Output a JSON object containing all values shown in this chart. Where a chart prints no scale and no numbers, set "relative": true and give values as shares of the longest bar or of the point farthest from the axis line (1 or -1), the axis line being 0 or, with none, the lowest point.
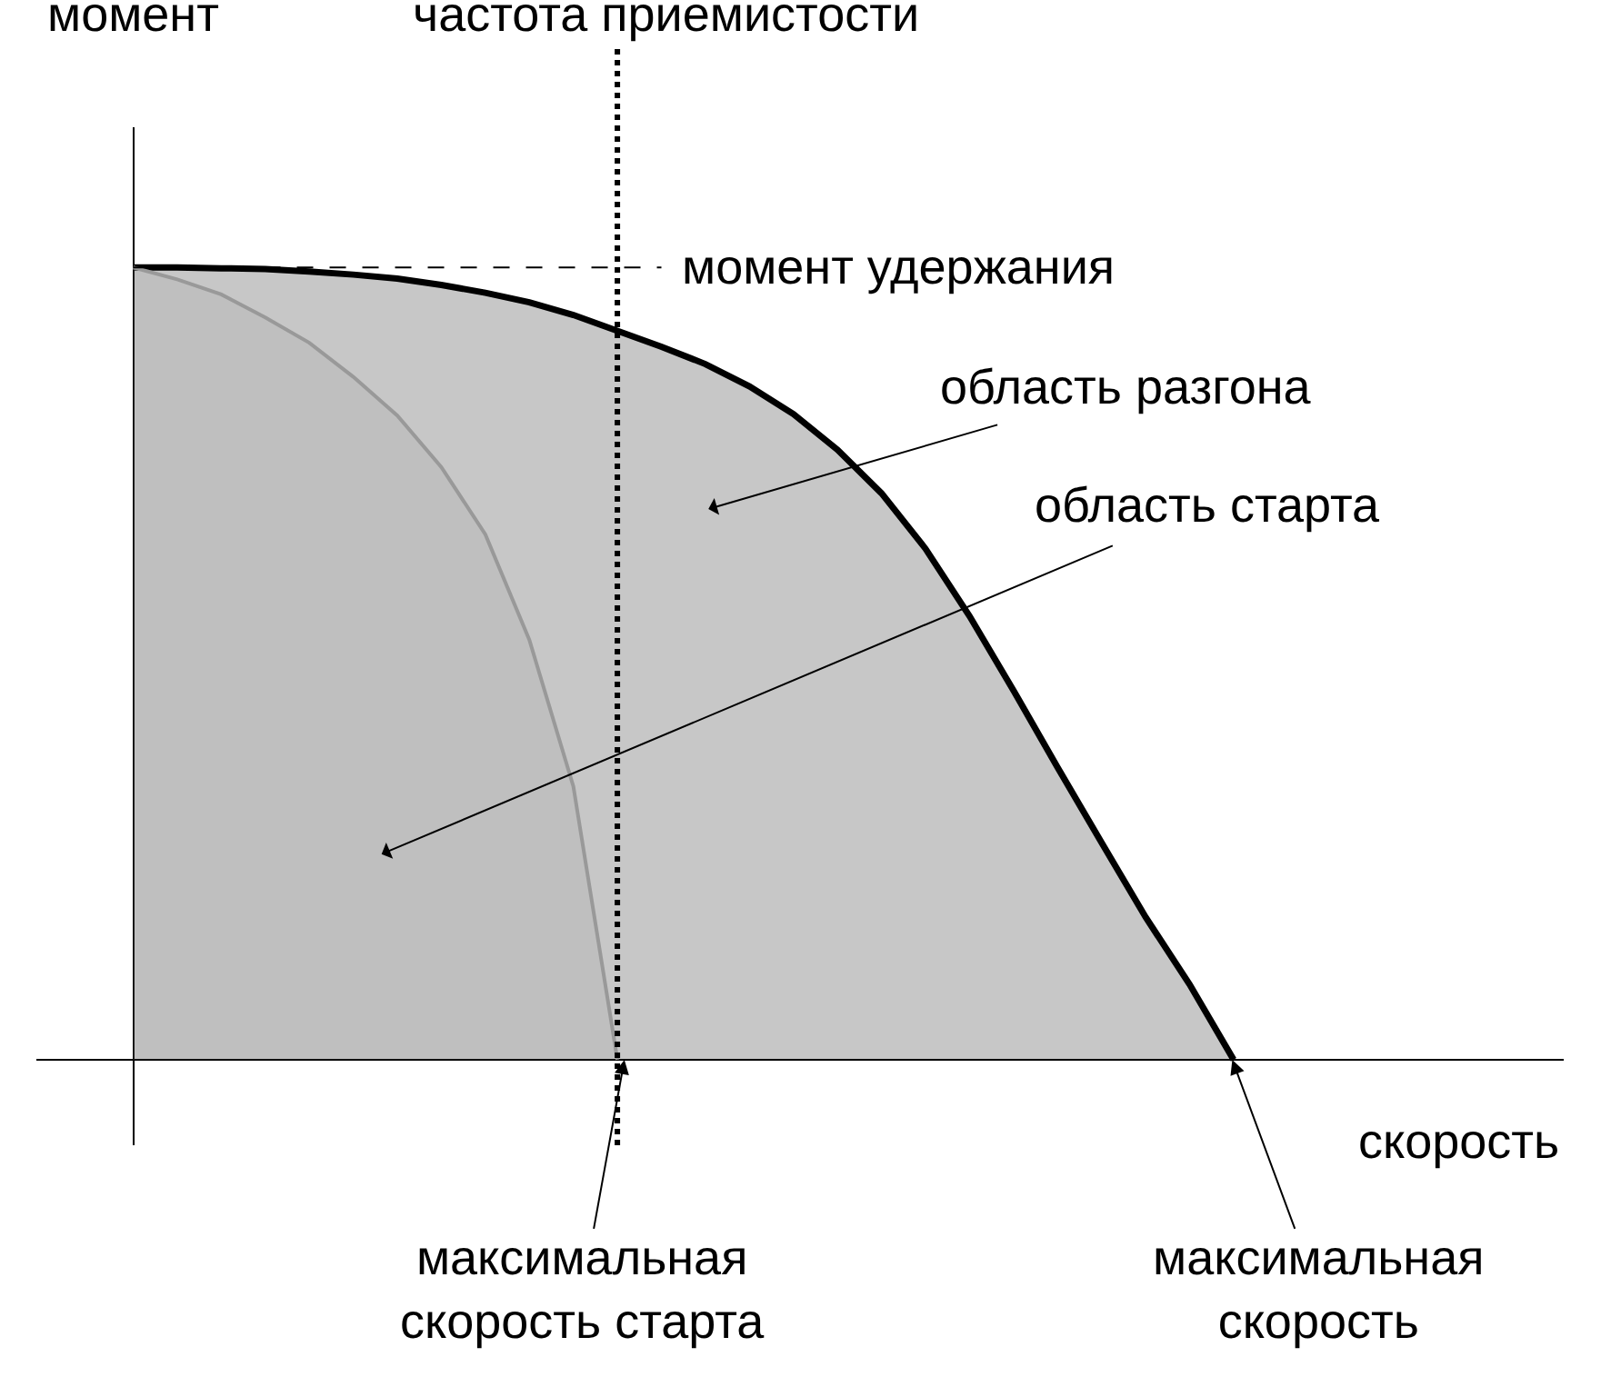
{
  "chart_data": {
    "type": "area",
    "relative": true,
    "xlabel": "скорость",
    "ylabel": "момент",
    "categories": [
      null,
      null,
      null,
      null,
      null,
      null,
      null,
      null,
      null,
      null,
      null,
      null,
      null,
      null,
      null,
      null,
      null,
      null,
      null,
      null,
      null,
      null,
      null,
      null,
      null,
      null
    ],
    "series": [
      {
        "color": "#000000",
        "values": [
          1,
          1.0,
          0.999,
          0.998,
          0.995,
          0.991,
          0.986,
          0.978,
          0.968,
          0.956,
          0.94,
          0.92,
          0.9,
          0.878,
          0.85,
          0.815,
          0.77,
          0.715,
          0.645,
          0.56,
          0.466,
          0.369,
          0.274,
          0.18,
          0.095,
          0
        ]
      },
      {
        "color": "#999999",
        "values": [
          1,
          0.985,
          0.966,
          0.937,
          0.905,
          0.862,
          0.813,
          0.748,
          0.663,
          0.53,
          0.345,
          0,
          null,
          null,
          null,
          null,
          null,
          null,
          null,
          null,
          null,
          null,
          null,
          null,
          null,
          null
        ]
      }
    ],
    "ref_lines": [
      {
        "axis": "x",
        "label": "частота приемистости",
        "line_style": "dotted",
        "color": "#000000"
      },
      {
        "axis": "y",
        "value": 1,
        "label": "момент удержания",
        "line_style": "dashed",
        "color": "#000000"
      }
    ],
    "annotations": [
      "область разгона",
      "область старта",
      "максимальная\nскорость старта",
      "максимальная\nскорость"
    ]
  }
}
